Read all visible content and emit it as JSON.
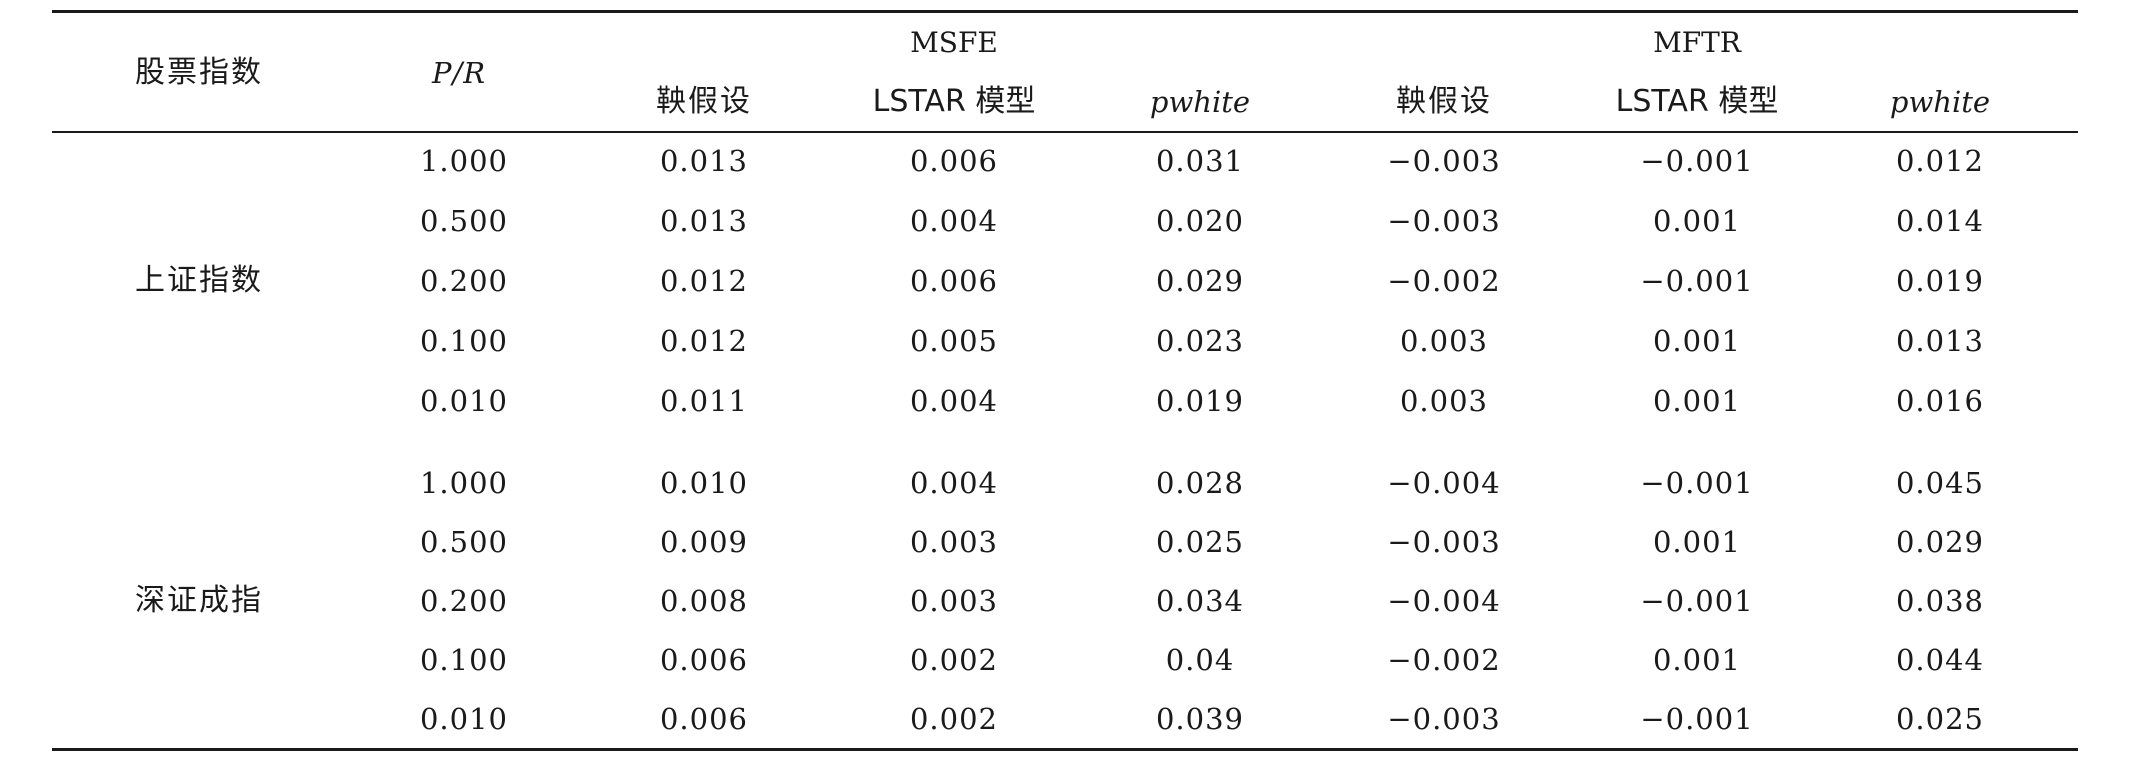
{
  "table": {
    "headers": {
      "index": "股票指数",
      "pr": "P/R",
      "msfe": "MSFE",
      "mftr": "MFTR",
      "msfe_cols": [
        "鞅假设",
        "LSTAR 模型",
        "pwhite"
      ],
      "mftr_cols": [
        "鞅假设",
        "LSTAR 模型",
        "pwhite"
      ]
    },
    "groups": [
      {
        "name": "上证指数",
        "rows": [
          {
            "pr": "1.000",
            "msfe_mart": "0.013",
            "msfe_lstar": "0.006",
            "msfe_pwhite": "0.031",
            "mftr_mart": "−0.003",
            "mftr_lstar": "−0.001",
            "mftr_pwhite": "0.012"
          },
          {
            "pr": "0.500",
            "msfe_mart": "0.013",
            "msfe_lstar": "0.004",
            "msfe_pwhite": "0.020",
            "mftr_mart": "−0.003",
            "mftr_lstar": "0.001",
            "mftr_pwhite": "0.014"
          },
          {
            "pr": "0.200",
            "msfe_mart": "0.012",
            "msfe_lstar": "0.006",
            "msfe_pwhite": "0.029",
            "mftr_mart": "−0.002",
            "mftr_lstar": "−0.001",
            "mftr_pwhite": "0.019"
          },
          {
            "pr": "0.100",
            "msfe_mart": "0.012",
            "msfe_lstar": "0.005",
            "msfe_pwhite": "0.023",
            "mftr_mart": "0.003",
            "mftr_lstar": "0.001",
            "mftr_pwhite": "0.013"
          },
          {
            "pr": "0.010",
            "msfe_mart": "0.011",
            "msfe_lstar": "0.004",
            "msfe_pwhite": "0.019",
            "mftr_mart": "0.003",
            "mftr_lstar": "0.001",
            "mftr_pwhite": "0.016"
          }
        ]
      },
      {
        "name": "深证成指",
        "rows": [
          {
            "pr": "1.000",
            "msfe_mart": "0.010",
            "msfe_lstar": "0.004",
            "msfe_pwhite": "0.028",
            "mftr_mart": "−0.004",
            "mftr_lstar": "−0.001",
            "mftr_pwhite": "0.045"
          },
          {
            "pr": "0.500",
            "msfe_mart": "0.009",
            "msfe_lstar": "0.003",
            "msfe_pwhite": "0.025",
            "mftr_mart": "−0.003",
            "mftr_lstar": "0.001",
            "mftr_pwhite": "0.029"
          },
          {
            "pr": "0.200",
            "msfe_mart": "0.008",
            "msfe_lstar": "0.003",
            "msfe_pwhite": "0.034",
            "mftr_mart": "−0.004",
            "mftr_lstar": "−0.001",
            "mftr_pwhite": "0.038"
          },
          {
            "pr": "0.100",
            "msfe_mart": "0.006",
            "msfe_lstar": "0.002",
            "msfe_pwhite": "0.04",
            "mftr_mart": "−0.002",
            "mftr_lstar": "0.001",
            "mftr_pwhite": "0.044"
          },
          {
            "pr": "0.010",
            "msfe_mart": "0.006",
            "msfe_lstar": "0.002",
            "msfe_pwhite": "0.039",
            "mftr_mart": "−0.003",
            "mftr_lstar": "−0.001",
            "mftr_pwhite": "0.025"
          }
        ]
      }
    ]
  }
}
